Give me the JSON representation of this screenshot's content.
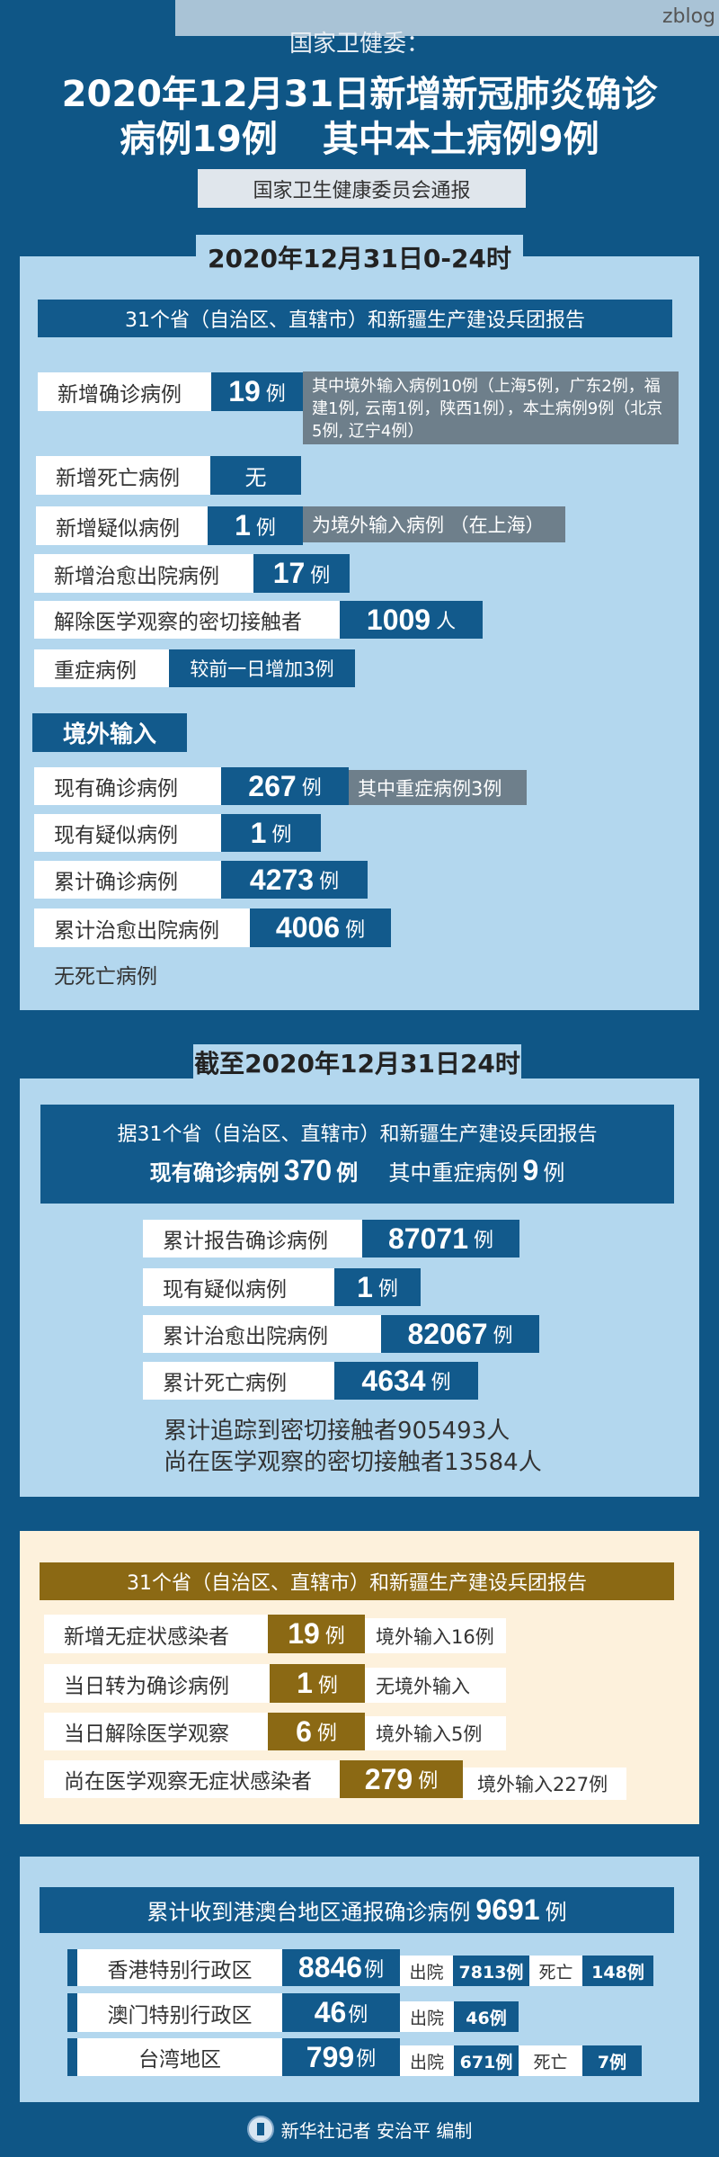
{
  "header": {
    "watermark": "zblog",
    "org": "国家卫健委：",
    "title_line1": "2020年12月31日新增新冠肺炎确诊",
    "title_line2a": "病例19例",
    "title_line2b": "其中本土病例9例",
    "source": "国家卫生健康委员会通报"
  },
  "s1": {
    "tab": "2020年12月31日0-24时",
    "report": "31个省（自治区、直辖市）和新疆生产建设兵团报告",
    "rows": [
      {
        "label": "新增确诊病例",
        "num": "19",
        "unit": "例",
        "note": "其中境外输入病例10例（上海5例，广东2例，福建1例, 云南1例，陕西1例），本土病例9例（北京5例, 辽宁4例）"
      },
      {
        "label": "新增死亡病例",
        "num": "无",
        "unit": ""
      },
      {
        "label": "新增疑似病例",
        "num": "1",
        "unit": "例",
        "note": "为境外输入病例 （在上海）"
      },
      {
        "label": "新增治愈出院病例",
        "num": "17",
        "unit": "例"
      },
      {
        "label": "解除医学观察的密切接触者",
        "num": "1009",
        "unit": "人"
      },
      {
        "label": "重症病例",
        "note": "较前一日增加3例"
      }
    ],
    "imported_title": "境外输入",
    "imported": [
      {
        "label": "现有确诊病例",
        "num": "267",
        "unit": "例",
        "note": "其中重症病例3例"
      },
      {
        "label": "现有疑似病例",
        "num": "1",
        "unit": "例"
      },
      {
        "label": "累计确诊病例",
        "num": "4273",
        "unit": "例"
      },
      {
        "label": "累计治愈出院病例",
        "num": "4006",
        "unit": "例"
      }
    ],
    "no_death": "无死亡病例"
  },
  "s2": {
    "tab": "截至2020年12月31日24时",
    "report": "据31个省（自治区、直辖市）和新疆生产建设兵团报告",
    "current_label": "现有确诊病例",
    "current_num": "370",
    "current_unit": "例",
    "severe_label": "其中重症病例",
    "severe_num": "9",
    "severe_unit": "例",
    "rows": [
      {
        "label": "累计报告确诊病例",
        "num": "87071",
        "unit": "例"
      },
      {
        "label": "现有疑似病例",
        "num": "1",
        "unit": "例"
      },
      {
        "label": "累计治愈出院病例",
        "num": "82067",
        "unit": "例"
      },
      {
        "label": "累计死亡病例",
        "num": "4634",
        "unit": "例"
      }
    ],
    "traced": "累计追踪到密切接触者905493人",
    "observing": "尚在医学观察的密切接触者13584人"
  },
  "s3": {
    "report": "31个省（自治区、直辖市）和新疆生产建设兵团报告",
    "rows": [
      {
        "label": "新增无症状感染者",
        "num": "19",
        "unit": "例",
        "note": "境外输入16例"
      },
      {
        "label": "当日转为确诊病例",
        "num": "1",
        "unit": "例",
        "note": "无境外输入"
      },
      {
        "label": "当日解除医学观察",
        "num": "6",
        "unit": "例",
        "note": "境外输入5例"
      },
      {
        "label": "尚在医学观察无症状感染者",
        "num": "279",
        "unit": "例",
        "note": "境外输入227例"
      }
    ]
  },
  "s4": {
    "total_label": "累计收到港澳台地区通报确诊病例",
    "total_num": "9691",
    "total_unit": "例",
    "discharged_label": "出院",
    "death_label": "死亡",
    "rows": [
      {
        "label": "香港特别行政区",
        "num": "8846",
        "unit": "例",
        "discharged": "7813例",
        "deaths": "148例"
      },
      {
        "label": "澳门特别行政区",
        "num": "46",
        "unit": "例",
        "discharged": "46例"
      },
      {
        "label": "台湾地区",
        "num": "799",
        "unit": "例",
        "discharged": "671例",
        "deaths": "7例"
      }
    ]
  },
  "footer": {
    "credit": "新华社记者 安治平 编制"
  },
  "colors": {
    "background": "#0f5686",
    "panel": "#b3d7ee",
    "value": "#125a8c",
    "note": "#6e7f8b",
    "gold": "#8b6914",
    "cream": "#fdf1dc"
  }
}
